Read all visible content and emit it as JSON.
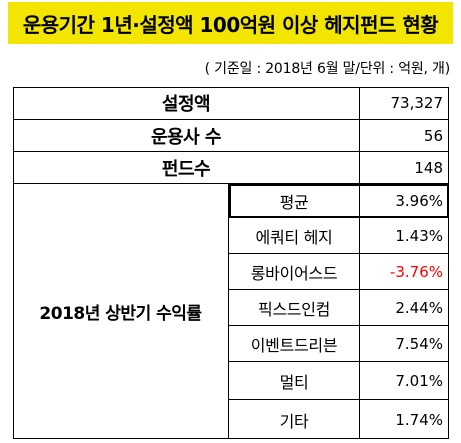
{
  "title": "운용기간 1년·설정액 100억원 이상 헤지펀드 현황",
  "note": "( 기준일 : 2018년 6월 말/단위 : 억원, 개)",
  "summary": [
    {
      "label": "설정액",
      "value": "73,327"
    },
    {
      "label": "운용사 수",
      "value": "56"
    },
    {
      "label": "펀드수",
      "value": "148"
    }
  ],
  "returns": {
    "group_label": "2018년 상반기 수익률",
    "rows": [
      {
        "label": "평균",
        "value": "3.96%"
      },
      {
        "label": "에쿼티 헤지",
        "value": "1.43%"
      },
      {
        "label": "롱바이어스드",
        "value": "-3.76%"
      },
      {
        "label": "픽스드인컴",
        "value": "2.44%"
      },
      {
        "label": "이벤트드리븐",
        "value": "7.54%"
      },
      {
        "label": "멀티",
        "value": "7.01%"
      },
      {
        "label": "기타",
        "value": "1.74%"
      }
    ]
  },
  "colors": {
    "title_bg": "#f2e500",
    "negative": "#ff0000"
  }
}
